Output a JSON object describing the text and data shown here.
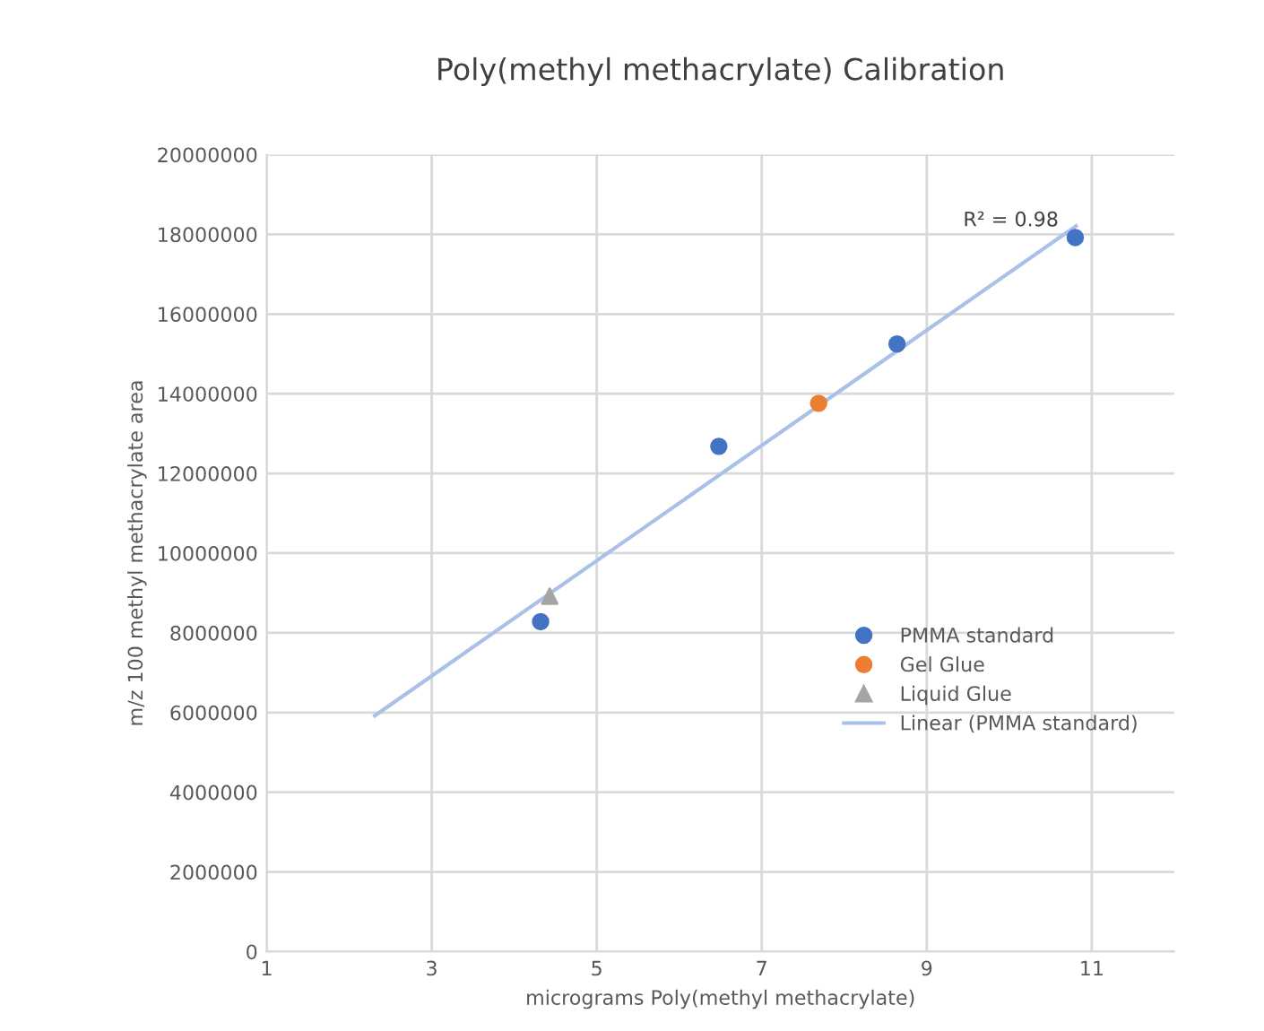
{
  "chart_data": {
    "type": "scatter",
    "title": "Poly(methyl methacrylate) Calibration",
    "xlabel": "micrograms Poly(methyl methacrylate)",
    "ylabel": "m/z 100 methyl methacrylate area",
    "xlim": [
      1,
      12
    ],
    "xticks": [
      1,
      3,
      5,
      7,
      9,
      11
    ],
    "ylim": [
      0,
      20000000
    ],
    "yticks": [
      0,
      2000000,
      4000000,
      6000000,
      8000000,
      10000000,
      12000000,
      14000000,
      16000000,
      18000000,
      20000000
    ],
    "grid": true,
    "legend": "right",
    "series": [
      {
        "name": "PMMA standard",
        "marker": "circle",
        "color": "#4472c4",
        "x": [
          4.32,
          6.48,
          8.64,
          10.8
        ],
        "values": [
          8280000,
          12680000,
          15250000,
          17920000
        ]
      },
      {
        "name": "Gel Glue",
        "marker": "circle",
        "color": "#ed7d31",
        "x": [
          7.69
        ],
        "values": [
          13760000
        ]
      },
      {
        "name": "Liquid Glue",
        "marker": "triangle",
        "color": "#a5a5a5",
        "x": [
          4.43
        ],
        "values": [
          8920000
        ]
      },
      {
        "name": "Linear (PMMA standard)",
        "type": "line",
        "line_style": "solid",
        "marker": "none",
        "color": "#a9c1e8",
        "x": [
          2.31,
          10.81
        ],
        "values": [
          5920000,
          18210000
        ]
      }
    ],
    "annotations": [
      "R² = 0.98"
    ]
  }
}
